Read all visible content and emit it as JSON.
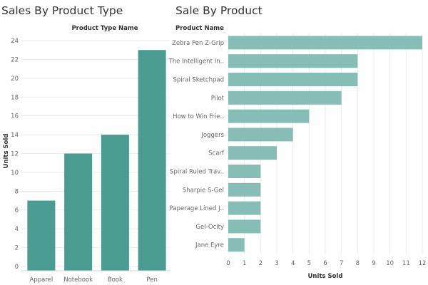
{
  "colors": {
    "bar_left": "#4a9b90",
    "bar_right": "#86bdb5",
    "grid": "#ececec",
    "text": "#666666",
    "title": "#333333"
  },
  "chart_data": [
    {
      "type": "bar",
      "orientation": "vertical",
      "title": "Sales By Product Type",
      "column_header": "Product Type Name",
      "ylabel": "Units Sold",
      "xlabel": "",
      "categories": [
        "Apparel",
        "Notebook",
        "Book",
        "Pen"
      ],
      "values": [
        7,
        12,
        14,
        23
      ],
      "ylim": [
        0,
        25
      ],
      "yticks": [
        0,
        2,
        4,
        6,
        8,
        10,
        12,
        14,
        16,
        18,
        20,
        22,
        24
      ],
      "grid": true
    },
    {
      "type": "bar",
      "orientation": "horizontal",
      "title": "Sale By Product",
      "row_header": "Product Name",
      "xlabel": "Units Sold",
      "ylabel": "",
      "categories": [
        "Zebra Pen Z-Grip",
        "The Intelligent In..",
        "Spiral Sketchpad",
        "Pilot",
        "How to Win Frie..",
        "Joggers",
        "Scarf",
        "Spiral Ruled Trav..",
        "Sharpie S-Gel",
        "Paperage Lined J..",
        "Gel-Ocity",
        "Jane Eyre"
      ],
      "values": [
        12,
        8,
        8,
        7,
        5,
        4,
        3,
        2,
        2,
        2,
        2,
        1
      ],
      "xlim": [
        0,
        12
      ],
      "xticks": [
        0,
        1,
        2,
        3,
        4,
        5,
        6,
        7,
        8,
        9,
        10,
        11,
        12
      ],
      "grid": true
    }
  ]
}
